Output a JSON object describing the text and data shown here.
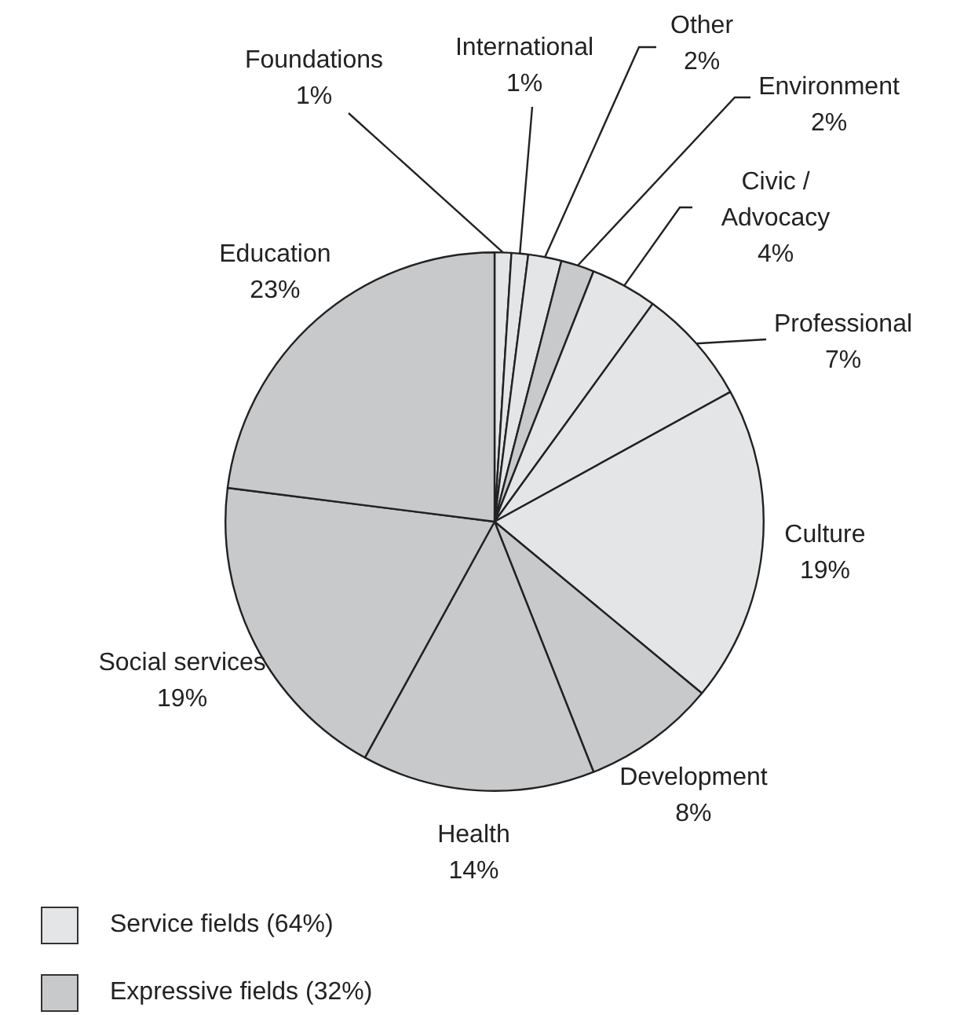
{
  "chart_data": {
    "type": "pie",
    "categories": [
      "Foundations",
      "International",
      "Other",
      "Environment",
      "Civic / Advocacy",
      "Professional",
      "Culture",
      "Development",
      "Health",
      "Social services",
      "Education"
    ],
    "values": [
      1,
      1,
      2,
      2,
      4,
      7,
      19,
      8,
      14,
      19,
      23
    ],
    "value_labels": [
      "1%",
      "1%",
      "2%",
      "2%",
      "4%",
      "7%",
      "19%",
      "8%",
      "14%",
      "19%",
      "23%"
    ],
    "colors": [
      "#e4e5e7",
      "#e4e5e7",
      "#e4e5e7",
      "#c8c9cb",
      "#e4e5e7",
      "#e4e5e7",
      "#e4e5e7",
      "#c8c9cb",
      "#c8c9cb",
      "#c8c9cb",
      "#c8c9cb"
    ],
    "annotations": [
      "Service fields (64%)",
      "Expressive fields (32%)"
    ],
    "legend": false
  }
}
